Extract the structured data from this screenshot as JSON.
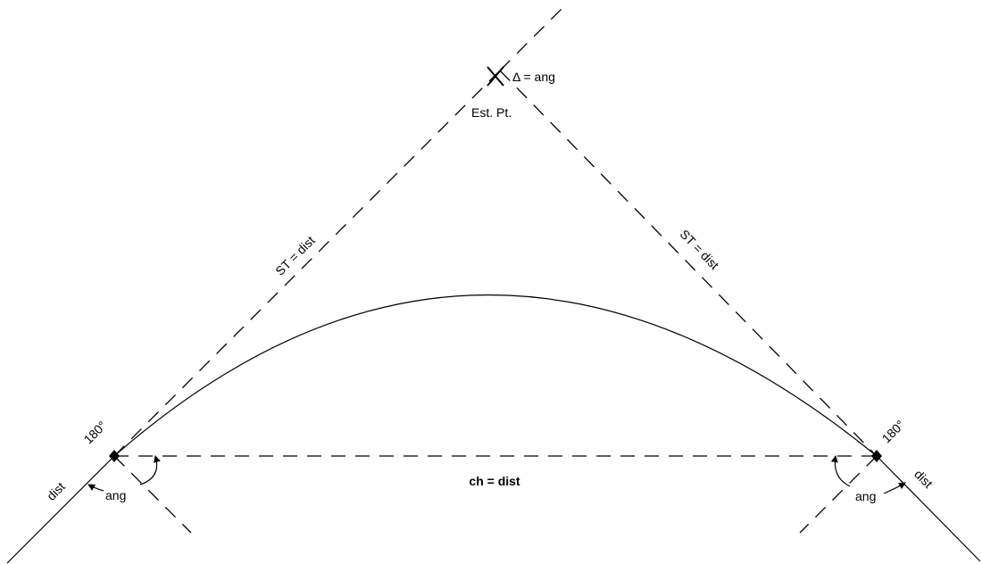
{
  "labels": {
    "delta": "Δ = ang",
    "est_pt": "Est. Pt.",
    "st_left": "ST = dist",
    "st_right": "ST = dist",
    "chord": "ch = dist",
    "left_180": "180°",
    "right_180": "180°",
    "left_dist": "dist",
    "right_dist": "dist",
    "left_ang": "ang",
    "right_ang": "ang"
  },
  "colors": {
    "line": "#000000",
    "background": "#ffffff"
  }
}
